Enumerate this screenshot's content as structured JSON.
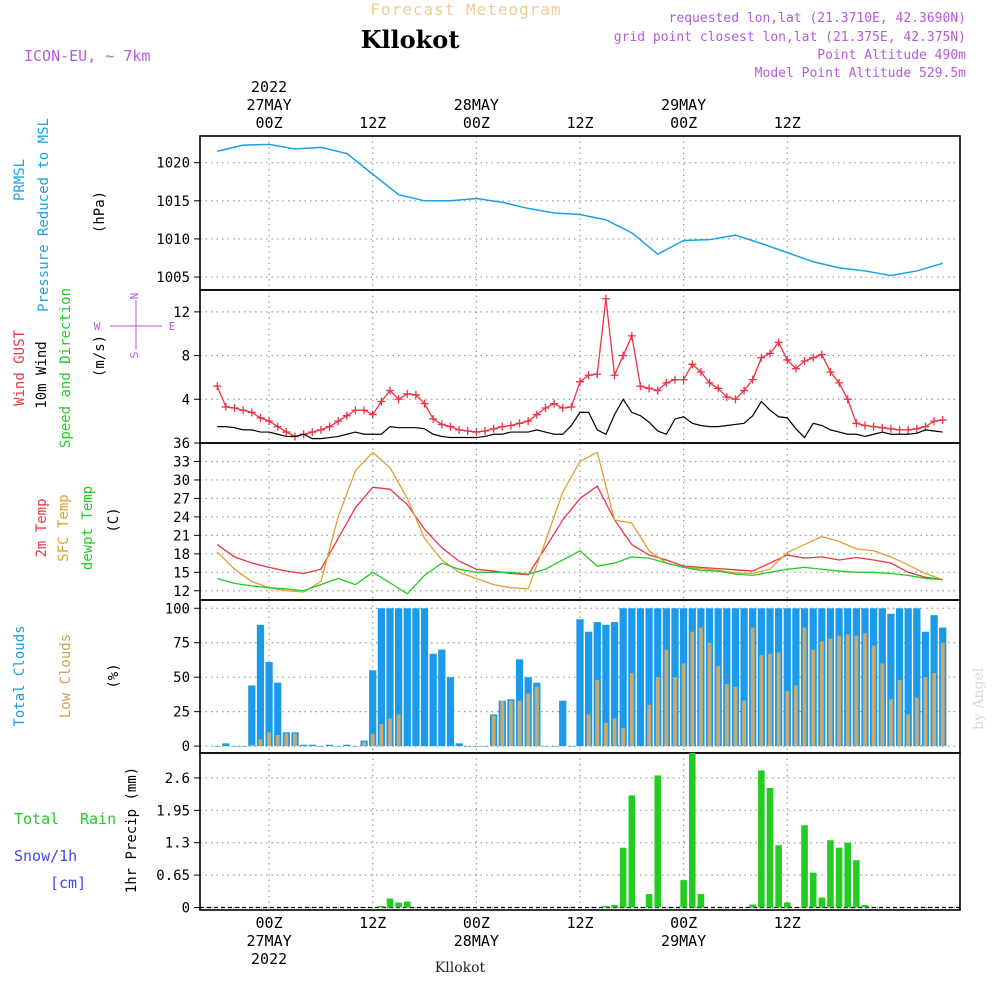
{
  "header": {
    "title_small": "Forecast Meteogram",
    "location": "Kllokot",
    "model": "ICON-EU, ~ 7km",
    "requested": "requested lon,lat (21.3710E, 42.3690N)",
    "grid_point": "grid point closest lon,lat (21.375E, 42.375N)",
    "point_altitude": "Point Altitude 490m",
    "model_altitude": "Model Point Altitude 529.5m",
    "footer_location": "Kllokot",
    "watermark": "by Angel"
  },
  "time_axis": {
    "top_labels": [
      {
        "lines": [
          "2022",
          "27MAY",
          "00Z"
        ]
      },
      {
        "lines": [
          "12Z"
        ]
      },
      {
        "lines": [
          "28MAY",
          "00Z"
        ]
      },
      {
        "lines": [
          "12Z"
        ]
      },
      {
        "lines": [
          "29MAY",
          "00Z"
        ]
      },
      {
        "lines": [
          "12Z"
        ]
      }
    ],
    "bottom_labels": [
      {
        "lines": [
          "00Z",
          "27MAY",
          "2022"
        ]
      },
      {
        "lines": [
          "12Z"
        ]
      },
      {
        "lines": [
          "00Z",
          "28MAY"
        ]
      },
      {
        "lines": [
          "12Z"
        ]
      },
      {
        "lines": [
          "00Z",
          "29MAY"
        ]
      },
      {
        "lines": [
          "12Z"
        ]
      }
    ]
  },
  "colors": {
    "pressure": "#1aa0e8",
    "gust": "#ee3344",
    "wind": "#000000",
    "temp2m": "#ee3344",
    "sfctemp": "#e0a030",
    "dewpt": "#22cc22",
    "totalclouds": "#1a9ae8",
    "lowclouds": "#c8aa70",
    "rain": "#22cc22",
    "snow": "#4444ee",
    "annot": "#b45ad8"
  },
  "chart_data": [
    {
      "type": "line",
      "panel": "pressure",
      "ylabel_lines": [
        "PRMSL",
        "Pressure Reduced to MSL"
      ],
      "unit": "(hPa)",
      "yticks": [
        1005,
        1010,
        1015,
        1020
      ],
      "ylim": [
        1003.3,
        1023.5
      ],
      "x_hours": [
        -6,
        -3,
        0,
        3,
        6,
        9,
        12,
        15,
        18,
        21,
        24,
        27,
        30,
        33,
        36,
        39,
        42,
        45,
        48,
        51,
        54,
        57,
        60,
        63,
        66,
        69,
        72,
        75,
        78
      ],
      "series": [
        {
          "values": [
            1021.5,
            1022.3,
            1022.4,
            1021.8,
            1022.0,
            1021.2,
            1018.5,
            1015.8,
            1015.0,
            1015.0,
            1015.3,
            1014.8,
            1014.0,
            1013.4,
            1013.2,
            1012.5,
            1010.8,
            1008.0,
            1009.8,
            1009.9,
            1010.5,
            1009.4,
            1008.2,
            1007.0,
            1006.2,
            1005.8,
            1005.2,
            1005.8,
            1006.8
          ]
        }
      ]
    },
    {
      "type": "line",
      "panel": "wind",
      "ylabel_lines": [
        "Wind GUST",
        "10m Wind",
        "Speed and Direction"
      ],
      "unit": "(m/s)",
      "compass": {
        "n": "N",
        "w": "W",
        "e": "E",
        "s": "S"
      },
      "yticks": [
        4,
        8,
        12
      ],
      "ylim": [
        0,
        14
      ],
      "x_hours": [
        -6,
        -5,
        -4,
        -3,
        -2,
        -1,
        0,
        1,
        2,
        3,
        4,
        5,
        6,
        7,
        8,
        9,
        10,
        11,
        12,
        13,
        14,
        15,
        16,
        17,
        18,
        19,
        20,
        21,
        22,
        23,
        24,
        25,
        26,
        27,
        28,
        29,
        30,
        31,
        32,
        33,
        34,
        35,
        36,
        37,
        38,
        39,
        40,
        41,
        42,
        43,
        44,
        45,
        46,
        47,
        48,
        49,
        50,
        51,
        52,
        53,
        54,
        55,
        56,
        57,
        58,
        59,
        60,
        61,
        62,
        63,
        64,
        65,
        66,
        67,
        68,
        69,
        70,
        71,
        72,
        73,
        74,
        75,
        76,
        77,
        78
      ],
      "series": [
        {
          "name": "Wind GUST",
          "values": [
            5.2,
            3.3,
            3.2,
            3.0,
            2.8,
            2.3,
            2.0,
            1.5,
            1.0,
            0.6,
            0.8,
            1.0,
            1.2,
            1.5,
            2.0,
            2.5,
            3.0,
            3.0,
            2.6,
            3.8,
            4.8,
            4.0,
            4.5,
            4.4,
            3.6,
            2.2,
            1.7,
            1.5,
            1.2,
            1.1,
            1.0,
            1.1,
            1.3,
            1.5,
            1.6,
            1.8,
            2.0,
            2.6,
            3.2,
            3.6,
            3.2,
            3.3,
            5.6,
            6.2,
            6.3,
            13.2,
            6.2,
            8.0,
            9.8,
            5.2,
            5.0,
            4.8,
            5.5,
            5.8,
            5.8,
            7.2,
            6.5,
            5.5,
            5.0,
            4.2,
            4.0,
            4.8,
            5.8,
            7.8,
            8.2,
            9.2,
            7.6,
            6.8,
            7.5,
            7.8,
            8.1,
            6.5,
            5.5,
            4.0,
            1.8,
            1.6,
            1.5,
            1.4,
            1.3,
            1.2,
            1.2,
            1.3,
            1.5,
            2.0,
            2.1
          ]
        },
        {
          "name": "10m Wind",
          "values": [
            1.5,
            1.5,
            1.4,
            1.2,
            1.2,
            1.0,
            1.0,
            0.8,
            0.6,
            0.6,
            0.8,
            0.4,
            0.4,
            0.5,
            0.6,
            0.8,
            1.0,
            0.8,
            0.8,
            0.8,
            1.5,
            1.4,
            1.4,
            1.4,
            1.3,
            0.8,
            0.6,
            0.5,
            0.5,
            0.5,
            0.5,
            0.6,
            0.8,
            0.8,
            1.0,
            1.0,
            1.0,
            1.2,
            1.0,
            0.8,
            0.8,
            1.6,
            2.8,
            2.8,
            1.2,
            0.8,
            2.6,
            4.0,
            2.8,
            2.5,
            1.9,
            1.1,
            0.8,
            2.2,
            2.4,
            1.8,
            1.6,
            1.5,
            1.5,
            1.6,
            1.7,
            1.8,
            2.5,
            3.8,
            3.0,
            2.4,
            2.3,
            1.3,
            0.5,
            1.8,
            1.6,
            1.2,
            1.0,
            0.8,
            0.8,
            0.6,
            0.8,
            1.0,
            0.8,
            0.8,
            0.8,
            0.9,
            1.2,
            1.1,
            1.0
          ]
        }
      ]
    },
    {
      "type": "line",
      "panel": "temperature",
      "ylabel_lines": [
        "2m Temp",
        "SFC Temp",
        "dewpt Temp"
      ],
      "unit": "(C)",
      "yticks": [
        12,
        15,
        18,
        21,
        24,
        27,
        30,
        33,
        36
      ],
      "ylim": [
        10.5,
        36
      ],
      "x_hours": [
        -6,
        -4,
        -2,
        0,
        2,
        4,
        6,
        8,
        10,
        12,
        14,
        16,
        18,
        20,
        22,
        24,
        26,
        28,
        30,
        32,
        34,
        36,
        38,
        40,
        42,
        44,
        46,
        48,
        50,
        52,
        54,
        56,
        58,
        60,
        62,
        64,
        66,
        68,
        70,
        72,
        74,
        76,
        78
      ],
      "series": [
        {
          "name": "2m Temp",
          "values": [
            19.5,
            17.5,
            16.5,
            15.8,
            15.2,
            14.8,
            15.5,
            20.5,
            25.5,
            28.8,
            28.5,
            26.0,
            22.0,
            19.0,
            16.8,
            15.5,
            15.2,
            14.8,
            14.6,
            19.0,
            23.5,
            27.0,
            29.0,
            23.5,
            19.5,
            17.8,
            17.0,
            16.0,
            15.8,
            15.6,
            15.4,
            15.2,
            16.5,
            17.8,
            17.3,
            17.5,
            17.0,
            17.4,
            17.0,
            16.5,
            15.0,
            14.2,
            13.8
          ]
        },
        {
          "name": "SFC Temp",
          "values": [
            18.3,
            15.5,
            13.5,
            12.5,
            12.0,
            11.8,
            13.5,
            24.0,
            31.5,
            34.5,
            32.0,
            27.0,
            20.5,
            17.0,
            15.0,
            14.0,
            13.0,
            12.5,
            12.3,
            20.0,
            28.0,
            33.0,
            34.5,
            23.5,
            23.0,
            18.5,
            16.5,
            15.8,
            15.6,
            15.3,
            14.9,
            14.8,
            15.5,
            18.2,
            19.5,
            20.8,
            20.0,
            18.8,
            18.5,
            17.5,
            16.2,
            14.8,
            13.8
          ]
        },
        {
          "name": "dewpt Temp",
          "values": [
            14.0,
            13.2,
            12.8,
            12.5,
            12.3,
            12.0,
            13.0,
            14.0,
            13.0,
            15.0,
            13.3,
            11.5,
            14.5,
            16.5,
            15.5,
            15.0,
            15.0,
            15.0,
            14.7,
            15.5,
            17.0,
            18.5,
            16.0,
            16.5,
            17.5,
            17.3,
            16.5,
            15.8,
            15.3,
            15.2,
            14.7,
            14.5,
            15.0,
            15.5,
            15.8,
            15.5,
            15.2,
            15.0,
            15.0,
            14.8,
            14.5,
            14.0,
            13.8
          ]
        }
      ]
    },
    {
      "type": "bar",
      "panel": "clouds",
      "ylabel_lines": [
        "Total Clouds",
        "Low Clouds"
      ],
      "unit": "(%)",
      "yticks": [
        0,
        25,
        50,
        75,
        100
      ],
      "ylim": [
        -5,
        106
      ],
      "x_start_hour": -6,
      "x_step_hours": 1,
      "series": [
        {
          "name": "Total Clouds",
          "values": [
            0,
            2,
            0,
            0,
            44,
            88,
            61,
            46,
            10,
            10,
            1,
            1,
            0,
            1,
            0,
            1,
            0,
            4,
            55,
            100,
            100,
            100,
            100,
            100,
            100,
            67,
            70,
            50,
            2,
            0,
            0,
            0,
            23,
            33,
            34,
            63,
            50,
            46,
            0,
            0,
            33,
            0,
            92,
            83,
            90,
            88,
            90,
            100,
            100,
            100,
            100,
            100,
            100,
            100,
            100,
            100,
            100,
            100,
            100,
            100,
            100,
            100,
            100,
            100,
            100,
            100,
            100,
            100,
            100,
            100,
            100,
            100,
            100,
            100,
            100,
            100,
            100,
            100,
            96,
            100,
            100,
            100,
            83,
            95,
            86
          ]
        },
        {
          "name": "Low Clouds",
          "values": [
            0,
            0,
            0,
            0,
            1,
            5,
            10,
            8,
            9,
            9,
            0,
            0,
            0,
            0,
            0,
            0,
            0,
            3,
            9,
            16,
            20,
            23,
            0,
            0,
            0,
            0,
            0,
            0,
            0,
            0,
            0,
            0,
            22,
            33,
            33,
            33,
            38,
            43,
            0,
            0,
            0,
            0,
            0,
            23,
            48,
            17,
            20,
            13,
            53,
            0,
            30,
            50,
            70,
            50,
            60,
            83,
            86,
            75,
            58,
            45,
            43,
            33,
            86,
            66,
            67,
            68,
            40,
            44,
            86,
            70,
            76,
            78,
            80,
            81,
            80,
            82,
            73,
            60,
            34,
            48,
            23,
            35,
            50,
            53,
            75
          ]
        }
      ]
    },
    {
      "type": "bar",
      "panel": "precipitation",
      "ylabel_lines": [
        "1hr Precip (mm)"
      ],
      "legend_labels": [
        "Total",
        "Rain",
        "Snow/1h",
        "[cm]"
      ],
      "yticks": [
        0,
        0.65,
        1.3,
        1.95,
        2.6
      ],
      "ylim": [
        -0.05,
        3.1
      ],
      "x_start_hour": -6,
      "x_step_hours": 1,
      "series": [
        {
          "name": "Total Rain",
          "values": [
            0,
            0,
            0,
            0,
            0,
            0,
            0,
            0,
            0,
            0,
            0,
            0,
            0,
            0,
            0,
            0,
            0,
            0,
            0,
            0.03,
            0.18,
            0.1,
            0.12,
            0,
            0,
            0,
            0,
            0,
            0,
            0,
            0,
            0,
            0,
            0,
            0,
            0,
            0,
            0,
            0,
            0,
            0,
            0,
            0,
            0,
            0,
            0.03,
            0.05,
            1.2,
            2.25,
            0,
            0.27,
            2.65,
            0,
            0,
            0.55,
            3.1,
            0.27,
            0,
            0,
            0,
            0,
            0,
            0.06,
            2.75,
            2.4,
            1.25,
            0.1,
            0,
            1.65,
            0.7,
            0.2,
            1.35,
            1.2,
            1.3,
            0.95,
            0.05,
            0,
            0,
            0,
            0,
            0,
            0,
            0,
            0,
            0
          ]
        }
      ]
    }
  ]
}
